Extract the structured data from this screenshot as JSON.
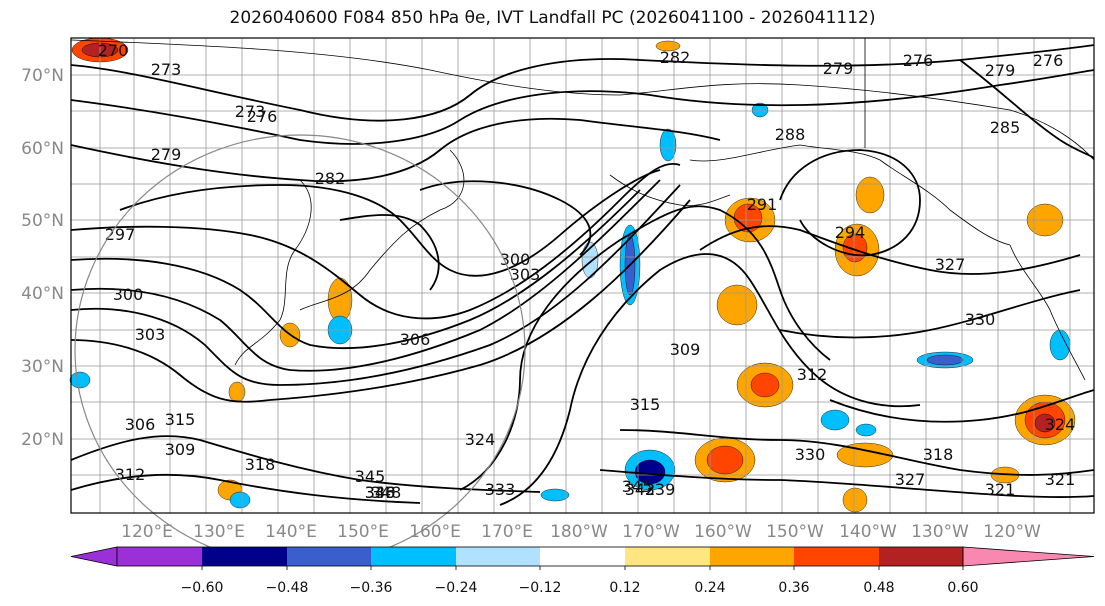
{
  "title": "2026040600 F084 850 hPa θe, IVT Landfall PC (2026041100 - 2026041112)",
  "lat_labels": [
    "70°N",
    "60°N",
    "50°N",
    "40°N",
    "30°N",
    "20°N"
  ],
  "lon_labels": [
    "120°E",
    "130°E",
    "140°E",
    "150°E",
    "160°E",
    "170°E",
    "180°W",
    "170°W",
    "160°W",
    "150°W",
    "140°W",
    "130°W",
    "120°W"
  ],
  "colorbar": {
    "tick_labels": [
      "−0.60",
      "−0.48",
      "−0.36",
      "−0.24",
      "−0.12",
      "0.12",
      "0.24",
      "0.36",
      "0.48",
      "0.60"
    ],
    "colors": [
      "#9b30d9",
      "#00008b",
      "#3a5fcd",
      "#00bfff",
      "#b0e2ff",
      "#ffffff",
      "#ffe680",
      "#ffa500",
      "#ff4500",
      "#b22222",
      "#f988b0"
    ]
  },
  "contour_labels": [
    "270",
    "273",
    "276",
    "279",
    "282",
    "282",
    "279",
    "276",
    "279",
    "276",
    "273",
    "285",
    "288",
    "291",
    "294",
    "297",
    "300",
    "303",
    "306",
    "309",
    "312",
    "315",
    "318",
    "321",
    "324",
    "327",
    "330",
    "333",
    "336",
    "339",
    "342",
    "345",
    "348",
    "300",
    "303",
    "306",
    "309",
    "312",
    "315",
    "318",
    "321",
    "324",
    "327",
    "330",
    "345",
    "348"
  ],
  "colors": {
    "land": "#ffffff",
    "grid": "#999999",
    "contour": "#000000"
  }
}
